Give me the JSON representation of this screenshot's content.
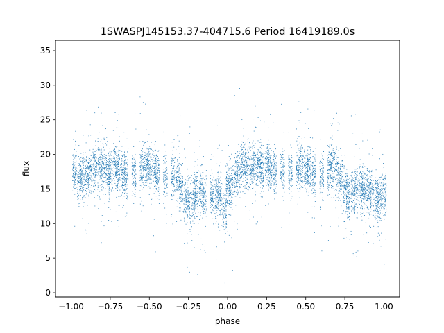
{
  "chart_data": {
    "type": "scatter",
    "title": "1SWASPJ145153.37-404715.6 Period 16419189.0s",
    "xlabel": "phase",
    "ylabel": "flux",
    "xlim": [
      -1.1,
      1.1
    ],
    "ylim": [
      -0.6,
      36.5
    ],
    "xticks": [
      -1.0,
      -0.75,
      -0.5,
      -0.25,
      0.0,
      0.25,
      0.5,
      0.75,
      1.0
    ],
    "xtick_labels": [
      "−1.00",
      "−0.75",
      "−0.50",
      "−0.25",
      "0.00",
      "0.25",
      "0.50",
      "0.75",
      "1.00"
    ],
    "yticks": [
      0,
      5,
      10,
      15,
      20,
      25,
      30,
      35
    ],
    "ytick_labels": [
      "0",
      "5",
      "10",
      "15",
      "20",
      "25",
      "30",
      "35"
    ],
    "grid": false,
    "legend": "none",
    "marker_color": "#1f77b4",
    "series": [
      {
        "phase": [
          -0.98,
          -0.95,
          -0.93,
          -0.9,
          -0.88,
          -0.85,
          -0.82,
          -0.8,
          -0.77,
          -0.75,
          -0.72,
          -0.7,
          -0.67,
          -0.65,
          -0.6,
          -0.55,
          -0.52,
          -0.5,
          -0.47,
          -0.45,
          -0.4,
          -0.35,
          -0.32,
          -0.3,
          -0.27,
          -0.25,
          -0.22,
          -0.2,
          -0.17,
          -0.15,
          -0.1,
          -0.07,
          -0.05,
          -0.02,
          0.0,
          0.02,
          0.05,
          0.07,
          0.1,
          0.12,
          0.15,
          0.17,
          0.2,
          0.22,
          0.25,
          0.27,
          0.3,
          0.35,
          0.4,
          0.45,
          0.47,
          0.5,
          0.52,
          0.55,
          0.6,
          0.65,
          0.67,
          0.7,
          0.72,
          0.75,
          0.77,
          0.8,
          0.82,
          0.85,
          0.87,
          0.9,
          0.92,
          0.95,
          0.97,
          1.0
        ],
        "flux": [
          17.5,
          16.5,
          16.5,
          17.0,
          17.5,
          18.0,
          18.5,
          18.5,
          17.5,
          17.0,
          18.5,
          18.0,
          17.5,
          17.0,
          17.0,
          18.0,
          18.5,
          18.5,
          18.0,
          17.5,
          16.5,
          17.0,
          16.5,
          15.5,
          13.5,
          13.0,
          13.5,
          14.5,
          15.0,
          14.0,
          14.5,
          14.5,
          13.5,
          12.0,
          15.5,
          15.5,
          17.0,
          17.5,
          18.5,
          18.5,
          18.0,
          18.5,
          18.5,
          18.0,
          18.5,
          18.0,
          17.5,
          17.5,
          17.5,
          18.5,
          18.5,
          18.0,
          18.0,
          17.5,
          17.0,
          18.0,
          18.5,
          17.5,
          16.5,
          15.0,
          14.0,
          14.5,
          15.0,
          15.5,
          15.0,
          15.0,
          14.5,
          13.5,
          14.0,
          14.5
        ]
      }
    ]
  }
}
